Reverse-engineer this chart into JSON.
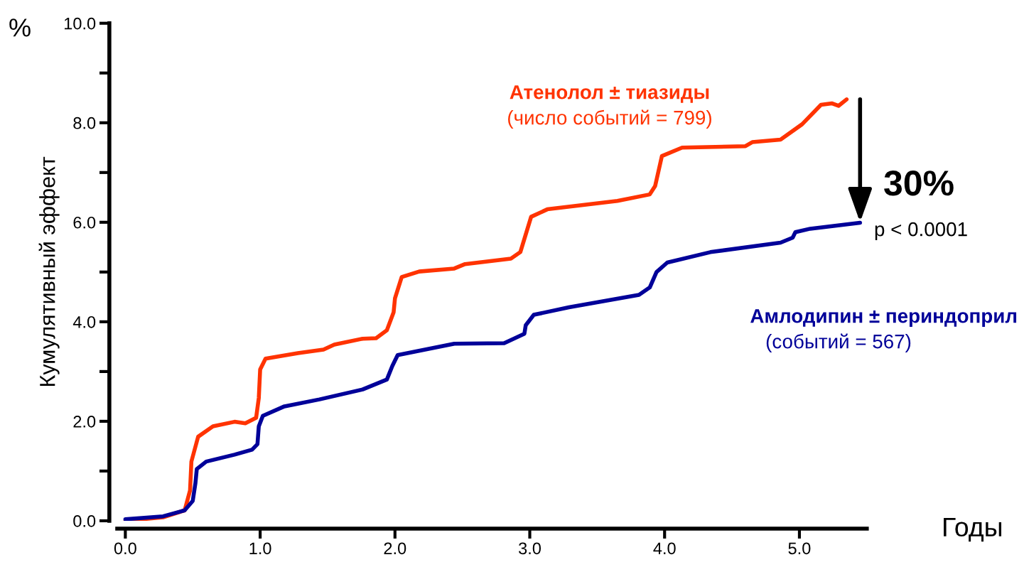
{
  "chart_data": {
    "type": "line",
    "ylabel": "Кумулятивный эффект",
    "xlabel": "Годы",
    "xlim": [
      -0.06,
      5.5
    ],
    "ylim": [
      0,
      10
    ],
    "xticks": [
      {
        "value": 0,
        "label": "0.0"
      },
      {
        "value": 1,
        "label": "1.0"
      },
      {
        "value": 2,
        "label": "2.0"
      },
      {
        "value": 3,
        "label": "3.0"
      },
      {
        "value": 4,
        "label": "4.0"
      },
      {
        "value": 5,
        "label": "5.0"
      }
    ],
    "yticks": [
      {
        "value": 0,
        "label": "0.0"
      },
      {
        "value": 1,
        "label": null
      },
      {
        "value": 2,
        "label": "2.0"
      },
      {
        "value": 3,
        "label": null
      },
      {
        "value": 4,
        "label": "4.0"
      },
      {
        "value": 5,
        "label": null
      },
      {
        "value": 6,
        "label": "6.0"
      },
      {
        "value": 7,
        "label": null
      },
      {
        "value": 8,
        "label": "8.0"
      },
      {
        "value": 9,
        "label": null
      },
      {
        "value": 10,
        "label": "10.0"
      }
    ],
    "grid": false,
    "legend": false,
    "marker": "none",
    "line_style": "solid",
    "series": [
      {
        "name": "Атенолол ± тиазиды\n(число событий = 799)",
        "color": "#ff3300",
        "x": [
          0,
          0.28,
          0.44,
          0.48,
          0.49,
          0.54,
          0.65,
          0.81,
          0.89,
          0.97,
          0.99,
          1.0,
          1.04,
          1.28,
          1.47,
          1.55,
          1.76,
          1.86,
          1.94,
          1.99,
          2.0,
          2.05,
          2.18,
          2.44,
          2.52,
          2.86,
          2.93,
          3.01,
          3.13,
          3.65,
          3.89,
          3.93,
          3.98,
          4.13,
          4.6,
          4.65,
          4.86,
          5.02,
          5.16,
          5.24,
          5.29,
          5.35
        ],
        "values": [
          0,
          0.07,
          0.21,
          0.61,
          1.19,
          1.69,
          1.9,
          1.99,
          1.96,
          2.07,
          2.47,
          3.04,
          3.26,
          3.37,
          3.44,
          3.54,
          3.66,
          3.67,
          3.83,
          4.19,
          4.47,
          4.9,
          5.01,
          5.07,
          5.16,
          5.27,
          5.4,
          6.11,
          6.26,
          6.43,
          6.56,
          6.73,
          7.33,
          7.5,
          7.53,
          7.61,
          7.66,
          7.97,
          8.36,
          8.39,
          8.34,
          8.47
        ]
      },
      {
        "name": "Амлодипин ± периндоприл\n(событий = 567)",
        "color": "#000099",
        "x": [
          0,
          0.28,
          0.44,
          0.5,
          0.52,
          0.53,
          0.6,
          0.81,
          0.94,
          0.98,
          0.99,
          1.02,
          1.18,
          1.44,
          1.76,
          1.94,
          1.98,
          2.02,
          2.44,
          2.81,
          2.96,
          2.97,
          3.03,
          3.29,
          3.81,
          3.89,
          3.94,
          4.02,
          4.34,
          4.86,
          4.95,
          4.97,
          5.08,
          5.45
        ],
        "values": [
          0.03,
          0.09,
          0.21,
          0.4,
          0.76,
          1.04,
          1.19,
          1.33,
          1.43,
          1.54,
          1.9,
          2.11,
          2.3,
          2.44,
          2.64,
          2.84,
          3.11,
          3.33,
          3.56,
          3.57,
          3.76,
          3.93,
          4.14,
          4.29,
          4.54,
          4.69,
          5.0,
          5.19,
          5.4,
          5.59,
          5.69,
          5.8,
          5.87,
          5.99
        ]
      }
    ],
    "annotations": [
      {
        "text": "30%",
        "x": 5.45,
        "y": 6.0
      },
      "p < 0.0001",
      "%"
    ]
  }
}
